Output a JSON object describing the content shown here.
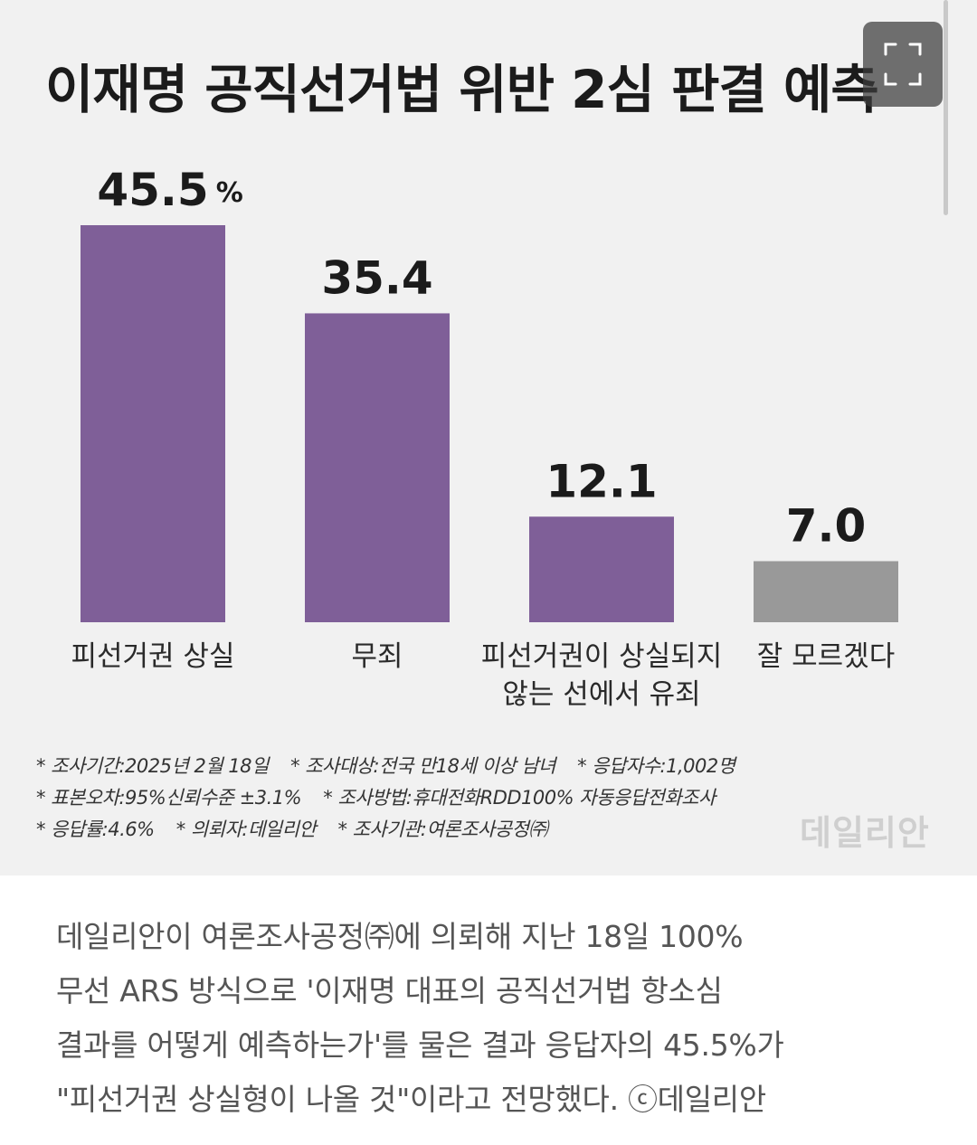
{
  "chart_data": {
    "type": "bar",
    "title": "이재명 공직선거법 위반 2심 판결 예측",
    "categories": [
      "피선거권 상실",
      "무죄",
      "피선거권이 상실되지 않는 선에서 유죄",
      "잘 모르겠다"
    ],
    "category_lines": [
      [
        "피선거권 상실"
      ],
      [
        "무죄"
      ],
      [
        "피선거권이 상실되지",
        "않는 선에서 유죄"
      ],
      [
        "잘 모르겠다"
      ]
    ],
    "values": [
      45.5,
      35.4,
      12.1,
      7.0
    ],
    "value_labels": [
      "45.5",
      "35.4",
      "12.1",
      "7.0"
    ],
    "unit_label": "%",
    "bar_colors": [
      "#7f5f98",
      "#7f5f98",
      "#7f5f98",
      "#999999"
    ],
    "ylim": [
      0,
      45.5
    ],
    "grid": false,
    "xlabel": "",
    "ylabel": ""
  },
  "footnotes": [
    [
      "* 조사기간:2025년 2월 18일",
      "* 조사대상:전국 만18세 이상 남녀",
      "* 응답자수:1,002명"
    ],
    [
      "* 표본오차:95%신뢰수준 ±3.1%",
      "* 조사방법:휴대전화RDD100% 자동응답전화조사"
    ],
    [
      "* 응답률:4.6%",
      "* 의뢰자:데일리안",
      "* 조사기관:여론조사공정㈜"
    ]
  ],
  "watermark": "데일리안",
  "expand_icon": "expand-icon",
  "article": {
    "lines": [
      "데일리안이 여론조사공정㈜에 의뢰해 지난 18일 100%",
      "무선 ARS 방식으로 '이재명 대표의 공직선거법 항소심",
      "결과를 어떻게 예측하는가'를 물은 결과 응답자의 45.5%가",
      "\"피선거권 상실형이 나올 것\"이라고 전망했다. ⓒ데일리안"
    ]
  }
}
